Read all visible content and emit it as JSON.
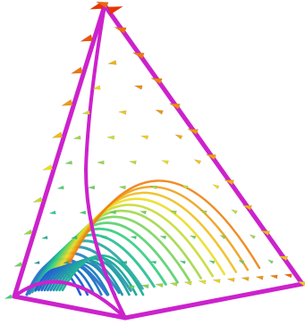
{
  "scene": {
    "subject": "vector-field-on-simplex",
    "colors": {
      "background": "#ffffff",
      "edge": "#cc22cc",
      "edge_highlight": "#ee66ee",
      "field_low": "#2255dd",
      "field_mid": "#22cc88",
      "field_high": "#eedd22",
      "field_max": "#ee3300"
    },
    "icons": {
      "arrow": "cone-arrow-glyph",
      "stream": "curved-stream-tube"
    }
  }
}
